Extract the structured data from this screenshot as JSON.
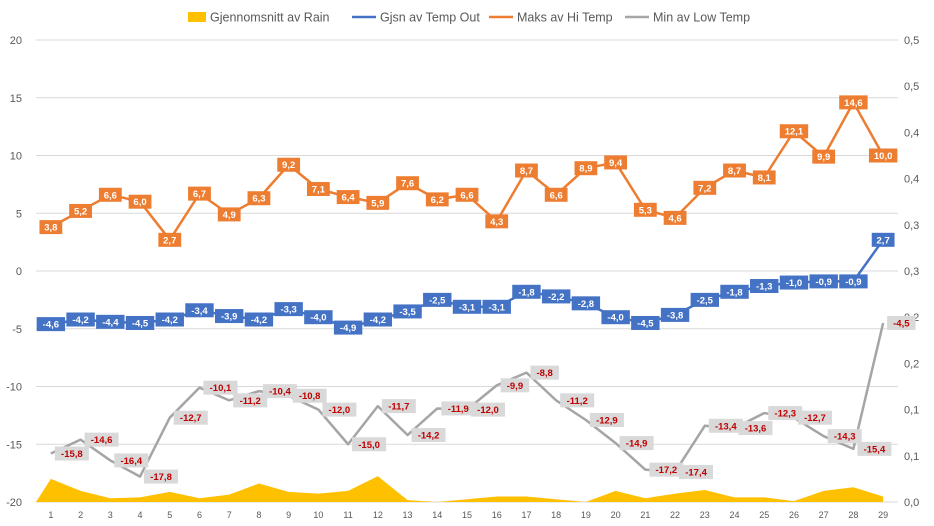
{
  "chart_data": {
    "type": "line",
    "categories": [
      "1",
      "2",
      "3",
      "4",
      "5",
      "6",
      "7",
      "8",
      "9",
      "10",
      "11",
      "12",
      "13",
      "14",
      "15",
      "16",
      "17",
      "18",
      "19",
      "20",
      "21",
      "22",
      "23",
      "24",
      "25",
      "26",
      "27",
      "28",
      "29"
    ],
    "left_axis": {
      "min": -20,
      "max": 20,
      "step": 5,
      "ticks": [
        "-20",
        "-15",
        "-10",
        "-5",
        "0",
        "5",
        "10",
        "15",
        "20"
      ]
    },
    "right_axis": {
      "min": 0.0,
      "max": 0.5,
      "step": 0.05,
      "ticks": [
        "0,0",
        "0,1",
        "0,1",
        "0,2",
        "0,2",
        "0,3",
        "0,3",
        "0,4",
        "0,4",
        "0,5",
        "0,5"
      ]
    },
    "grid": true,
    "legend_position": "top",
    "series": [
      {
        "name": "Gjennomsnitt av Rain",
        "kind": "area",
        "axis": "right",
        "color": "#ffc000",
        "values": [
          0.025,
          0.012,
          0.004,
          0.005,
          0.011,
          0.004,
          0.008,
          0.02,
          0.011,
          0.009,
          0.012,
          0.028,
          0.002,
          0.0,
          0.003,
          0.006,
          0.006,
          0.003,
          0.0,
          0.012,
          0.004,
          0.009,
          0.013,
          0.005,
          0.005,
          0.001,
          0.012,
          0.016,
          0.006
        ],
        "labels": null
      },
      {
        "name": "Gjsn av Temp Out",
        "kind": "line",
        "axis": "left",
        "color": "#4472c4",
        "label_style": "white-on-series",
        "values": [
          -4.6,
          -4.2,
          -4.4,
          -4.5,
          -4.2,
          -3.4,
          -3.9,
          -4.2,
          -3.3,
          -4.0,
          -4.9,
          -4.2,
          -3.5,
          -2.5,
          -3.1,
          -3.1,
          -1.8,
          -2.2,
          -2.8,
          -4.0,
          -4.5,
          -3.8,
          -2.5,
          -1.8,
          -1.3,
          -1.0,
          -0.9,
          -0.9,
          2.7
        ],
        "labels": [
          "-4,6",
          "-4,2",
          "-4,4",
          "-4,5",
          "-4,2",
          "-3,4",
          "-3,9",
          "-4,2",
          "-3,3",
          "-4,0",
          "-4,9",
          "-4,2",
          "-3,5",
          "-2,5",
          "-3,1",
          "-3,1",
          "-1,8",
          "-2,2",
          "-2,8",
          "-4,0",
          "-4,5",
          "-3,8",
          "-2,5",
          "-1,8",
          "-1,3",
          "-1,0",
          "-0,9",
          "-0,9",
          "2,7"
        ]
      },
      {
        "name": "Maks av Hi Temp",
        "kind": "line",
        "axis": "left",
        "color": "#ed7d31",
        "label_style": "white-on-series",
        "values": [
          3.8,
          5.2,
          6.6,
          6.0,
          2.7,
          6.7,
          4.9,
          6.3,
          9.2,
          7.1,
          6.4,
          5.9,
          7.6,
          6.2,
          6.6,
          4.3,
          8.7,
          6.6,
          8.9,
          9.4,
          5.3,
          4.6,
          7.2,
          8.7,
          8.1,
          12.1,
          9.9,
          14.6,
          10.0
        ],
        "labels": [
          "3,8",
          "5,2",
          "6,6",
          "6,0",
          "2,7",
          "6,7",
          "4,9",
          "6,3",
          "9,2",
          "7,1",
          "6,4",
          "5,9",
          "7,6",
          "6,2",
          "6,6",
          "4,3",
          "8,7",
          "6,6",
          "8,9",
          "9,4",
          "5,3",
          "4,6",
          "7,2",
          "8,7",
          "8,1",
          "12,1",
          "9,9",
          "14,6",
          "10,0"
        ]
      },
      {
        "name": "Min av Low Temp",
        "kind": "line",
        "axis": "left",
        "color": "#a5a5a5",
        "label_style": "red-on-gray",
        "values": [
          -15.8,
          -14.6,
          -16.4,
          -17.8,
          -12.7,
          -10.1,
          -11.2,
          -10.4,
          -10.8,
          -12.0,
          -15.0,
          -11.7,
          -14.2,
          -11.9,
          -12.0,
          -9.9,
          -8.8,
          -11.2,
          -12.9,
          -14.9,
          -17.2,
          -17.4,
          -13.4,
          -13.6,
          -12.3,
          -12.7,
          -14.3,
          -15.4,
          -4.5
        ],
        "labels": [
          "-15,8",
          "-14,6",
          "-16,4",
          "-17,8",
          "-12,7",
          "-10,1",
          "-11,2",
          "-10,4",
          "-10,8",
          "-12,0",
          "-15,0",
          "-11,7",
          "-14,2",
          "-11,9",
          "-12,0",
          "-9,9",
          "-8,8",
          "-11,2",
          "-12,9",
          "-14,9",
          "-17,2",
          "-17,4",
          "-13,4",
          "-13,6",
          "-12,3",
          "-12,7",
          "-14,3",
          "-15,4",
          "-4,5"
        ]
      }
    ]
  }
}
